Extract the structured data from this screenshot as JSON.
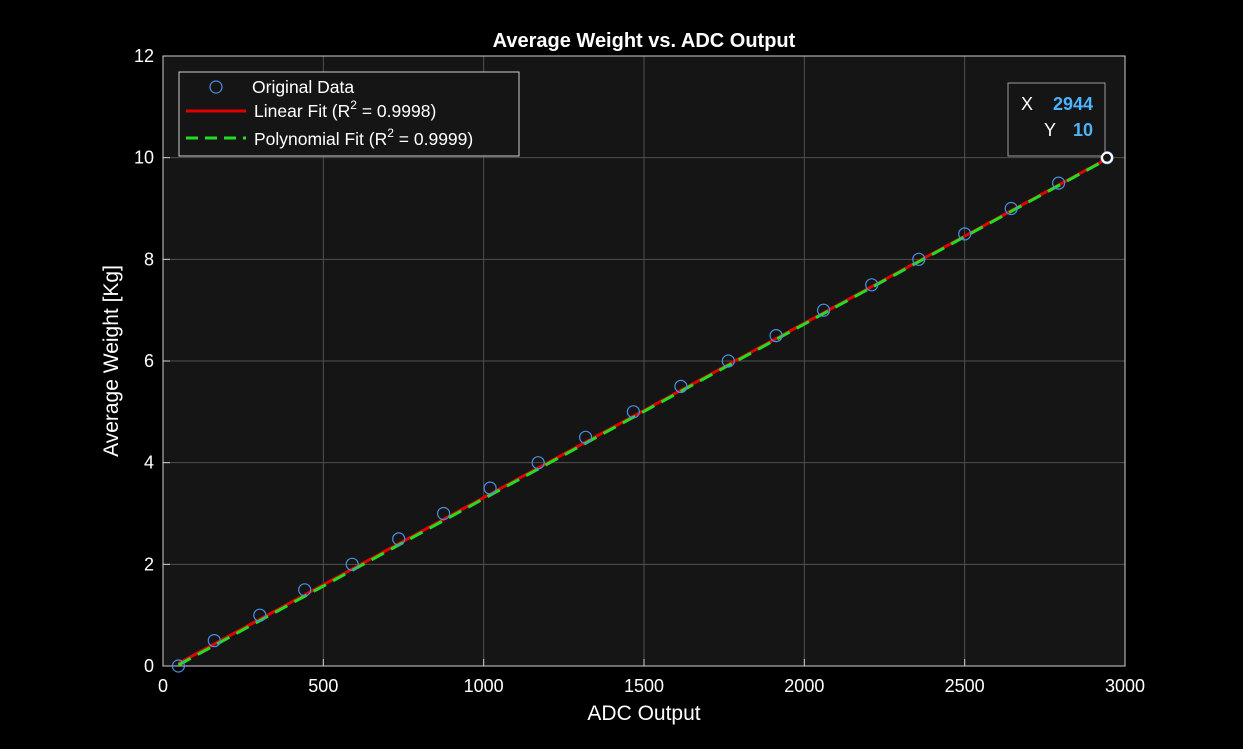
{
  "chart_data": {
    "type": "line",
    "title": "Average Weight vs. ADC Output",
    "xlabel": "ADC Output",
    "ylabel": "Average Weight [Kg]",
    "xlim": [
      0,
      3000
    ],
    "ylim": [
      0,
      12
    ],
    "x_ticks": [
      "0",
      "500",
      "1000",
      "1500",
      "2000",
      "2500",
      "3000"
    ],
    "y_ticks": [
      "0",
      "2",
      "4",
      "6",
      "8",
      "10",
      "12"
    ],
    "grid": true,
    "legend_position": "top-left",
    "series": [
      {
        "name": "Original Data",
        "style": "markers",
        "color": "#4a90e2",
        "x": [
          48,
          160,
          302,
          442,
          590,
          735,
          875,
          1020,
          1170,
          1318,
          1467,
          1615,
          1763,
          1912,
          2060,
          2210,
          2357,
          2500,
          2645,
          2793,
          2944
        ],
        "y": [
          0,
          0.5,
          1,
          1.5,
          2,
          2.5,
          3,
          3.5,
          4,
          4.5,
          5,
          5.5,
          6,
          6.5,
          7,
          7.5,
          8,
          8.5,
          9,
          9.5,
          10
        ]
      },
      {
        "name": "Linear Fit",
        "legend_label_prefix": "Linear  Fit  (R",
        "legend_label_suffix": "  =  0.9998)",
        "style": "solid",
        "color": "#e00000",
        "x": [
          48,
          2944
        ],
        "y": [
          0.05,
          9.98
        ]
      },
      {
        "name": "Polynomial Fit",
        "legend_label_prefix": "Polynomial  Fit  (R",
        "legend_label_suffix": "  =  0.9999)",
        "style": "dashed",
        "color": "#22dd22",
        "x": [
          48,
          2944
        ],
        "y": [
          0.02,
          9.97
        ]
      }
    ],
    "superscript": "2",
    "datatip": {
      "x_label": "X",
      "x_value": "2944",
      "y_label": "Y",
      "y_value": "10",
      "point": {
        "x": 2944,
        "y": 10
      }
    },
    "colors": {
      "background": "#000000",
      "axes_background": "#151515",
      "grid": "#505050",
      "axis_line": "#d0d0d0",
      "text": "#ffffff",
      "datatip_value": "#4db3ff"
    }
  }
}
